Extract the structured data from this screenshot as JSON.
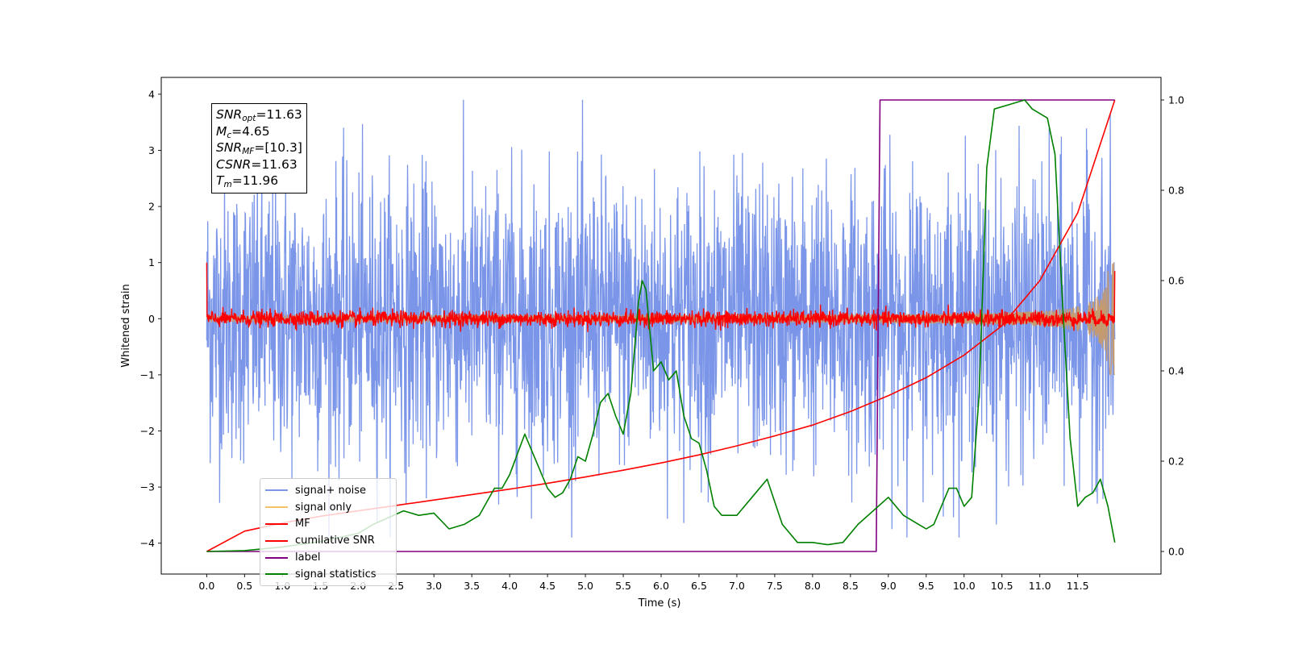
{
  "chart_data": {
    "type": "line",
    "title": "",
    "xlabel": "Time (s)",
    "ylabel": "Whitened strain",
    "xlim": [
      -0.6,
      12.6
    ],
    "ylim": [
      -4.55,
      4.3
    ],
    "ylim_right": [
      -0.05,
      1.05
    ],
    "x_ticks": [
      "0.0",
      "0.5",
      "1.0",
      "1.5",
      "2.0",
      "2.5",
      "3.0",
      "3.5",
      "4.0",
      "4.5",
      "5.0",
      "5.5",
      "6.0",
      "6.5",
      "7.0",
      "7.5",
      "8.0",
      "8.5",
      "9.0",
      "9.5",
      "10.0",
      "10.5",
      "11.0",
      "11.5"
    ],
    "y_ticks_left": [
      "4",
      "3",
      "2",
      "1",
      "0",
      "−1",
      "−2",
      "−3",
      "−4"
    ],
    "y_ticks_right": [
      "1.0",
      "0.8",
      "0.6",
      "0.4",
      "0.2",
      "0.0"
    ],
    "grid": false,
    "legend_placement": "lower-left",
    "annotation_box": {
      "snr_opt": "=11.63",
      "mc": "=4.65",
      "snr_mf": "=[10.3]",
      "csnr": "=11.63",
      "tm": "=11.96"
    },
    "series": [
      {
        "name": "signal+ noise",
        "color": "#7b96e8",
        "axis": "left",
        "description_values": {
          "x_range": [
            0.0,
            11.99
          ],
          "approx_envelope": [
            -3.9,
            3.9
          ]
        }
      },
      {
        "name": "signal only",
        "color": "#f5c26b",
        "axis": "left",
        "description_values": {
          "x_range": [
            0.0,
            11.99
          ],
          "amplitude_start": 0.05,
          "amplitude_end": 1.0
        }
      },
      {
        "name": "MF",
        "color": "#ff0000",
        "axis": "left",
        "description_values": {
          "x_range": [
            0.0,
            11.99
          ],
          "approx_envelope": [
            -0.25,
            0.25
          ]
        }
      },
      {
        "name": "cumilative SNR",
        "color": "#ff0000",
        "axis": "right",
        "x": [
          0.0,
          0.5,
          1.0,
          1.5,
          2.0,
          2.5,
          3.0,
          3.5,
          4.0,
          4.5,
          5.0,
          5.5,
          6.0,
          6.5,
          7.0,
          7.5,
          8.0,
          8.5,
          9.0,
          9.5,
          10.0,
          10.5,
          11.0,
          11.5,
          11.99
        ],
        "values": [
          0.0,
          0.045,
          0.063,
          0.078,
          0.09,
          0.102,
          0.114,
          0.126,
          0.138,
          0.151,
          0.165,
          0.18,
          0.196,
          0.214,
          0.234,
          0.256,
          0.28,
          0.31,
          0.345,
          0.385,
          0.435,
          0.5,
          0.6,
          0.75,
          1.0
        ]
      },
      {
        "name": "label",
        "color": "#800080",
        "axis": "right",
        "x": [
          0.0,
          8.84,
          8.89,
          11.99
        ],
        "values": [
          0.0,
          0.0,
          1.0,
          1.0
        ]
      },
      {
        "name": "signal statistics",
        "color": "#008000",
        "axis": "right",
        "x": [
          0.0,
          0.5,
          1.0,
          1.5,
          2.0,
          2.2,
          2.4,
          2.6,
          2.8,
          3.0,
          3.2,
          3.4,
          3.6,
          3.8,
          3.9,
          4.0,
          4.2,
          4.3,
          4.4,
          4.5,
          4.6,
          4.7,
          4.8,
          4.9,
          5.0,
          5.1,
          5.2,
          5.3,
          5.4,
          5.5,
          5.6,
          5.7,
          5.75,
          5.8,
          5.9,
          6.0,
          6.1,
          6.2,
          6.3,
          6.4,
          6.5,
          6.6,
          6.7,
          6.8,
          7.0,
          7.2,
          7.4,
          7.5,
          7.6,
          7.8,
          8.0,
          8.2,
          8.4,
          8.6,
          8.8,
          9.0,
          9.2,
          9.4,
          9.5,
          9.6,
          9.7,
          9.8,
          9.9,
          10.0,
          10.1,
          10.2,
          10.3,
          10.4,
          10.6,
          10.8,
          10.9,
          11.0,
          11.1,
          11.2,
          11.3,
          11.4,
          11.5,
          11.6,
          11.7,
          11.8,
          11.9,
          11.99
        ],
        "values": [
          0.0,
          0.002,
          0.01,
          0.022,
          0.04,
          0.06,
          0.075,
          0.09,
          0.08,
          0.085,
          0.05,
          0.06,
          0.08,
          0.14,
          0.14,
          0.17,
          0.26,
          0.22,
          0.18,
          0.14,
          0.12,
          0.13,
          0.16,
          0.21,
          0.2,
          0.26,
          0.33,
          0.35,
          0.3,
          0.26,
          0.35,
          0.55,
          0.6,
          0.58,
          0.4,
          0.42,
          0.38,
          0.4,
          0.3,
          0.25,
          0.24,
          0.18,
          0.1,
          0.08,
          0.08,
          0.12,
          0.16,
          0.11,
          0.06,
          0.02,
          0.02,
          0.015,
          0.02,
          0.06,
          0.09,
          0.12,
          0.08,
          0.06,
          0.05,
          0.06,
          0.1,
          0.14,
          0.14,
          0.1,
          0.12,
          0.35,
          0.85,
          0.98,
          0.99,
          1.0,
          0.98,
          0.97,
          0.96,
          0.88,
          0.55,
          0.25,
          0.1,
          0.12,
          0.13,
          0.16,
          0.1,
          0.02
        ]
      }
    ]
  }
}
